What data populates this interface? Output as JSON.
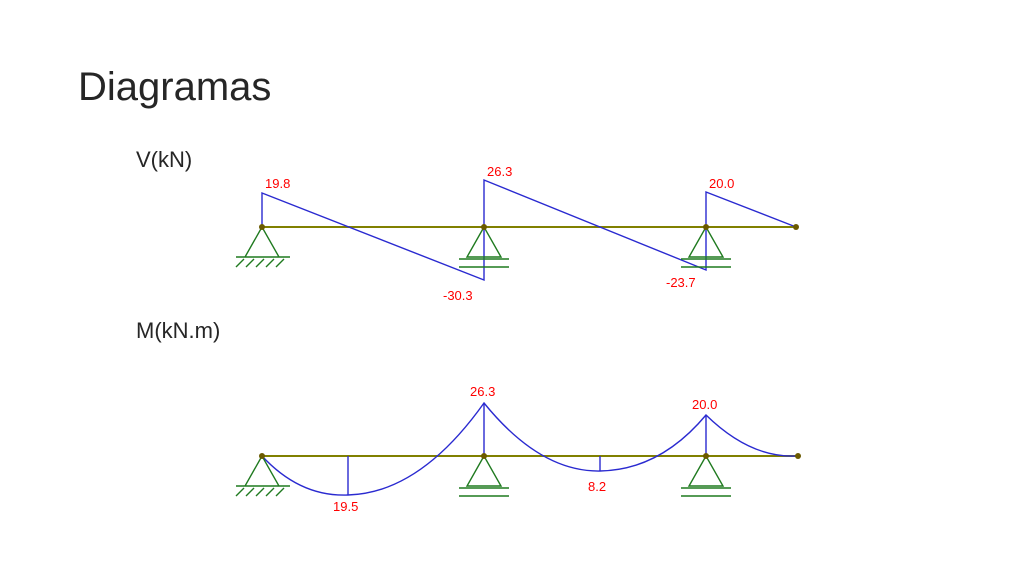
{
  "header": {
    "title": "Diagramas"
  },
  "shear": {
    "label": "V(kN)",
    "values": [
      "19.8",
      "26.3",
      "20.0",
      "-30.3",
      "-23.7"
    ]
  },
  "moment": {
    "label": "M(kN.m)",
    "values": [
      "26.3",
      "20.0",
      "19.5",
      "8.2"
    ]
  }
}
